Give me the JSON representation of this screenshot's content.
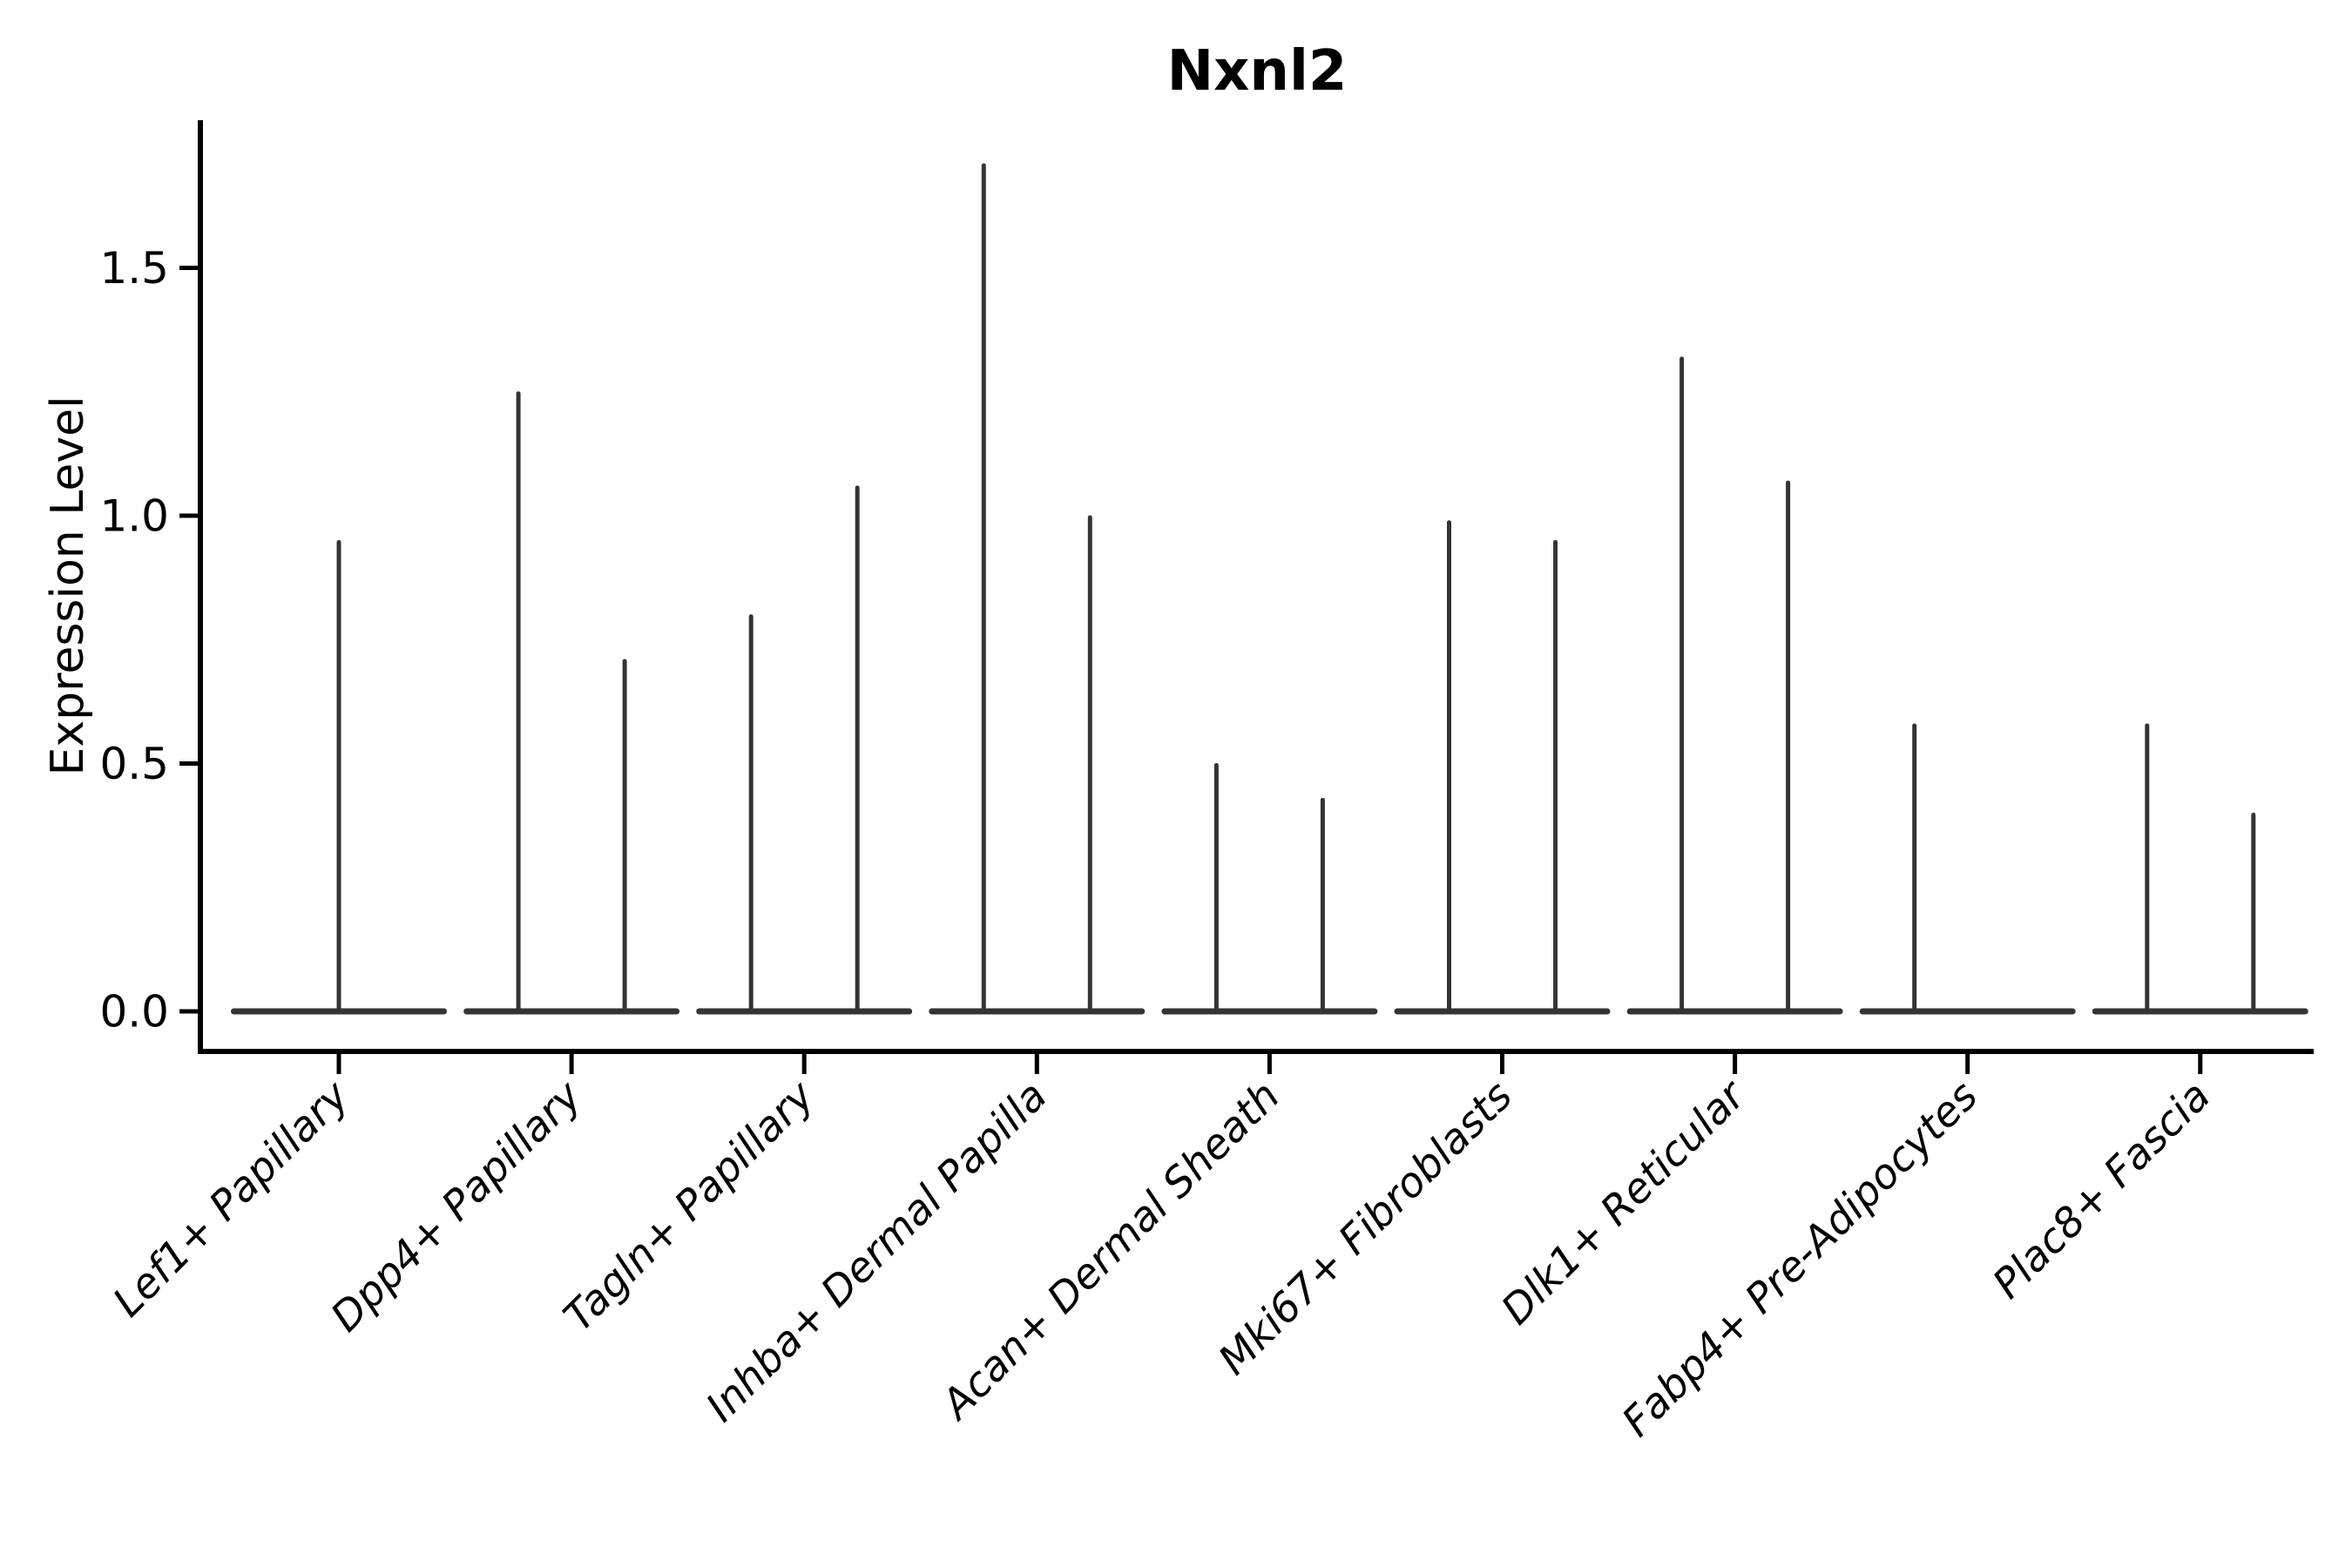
{
  "chart_data": {
    "type": "violin",
    "title": "Nxnl2",
    "ylabel": "Expression Level",
    "xlabel": "",
    "ylim": [
      -0.08,
      1.79
    ],
    "yticks": [
      0.0,
      0.5,
      1.0,
      1.5
    ],
    "ytick_labels": [
      "0.0",
      "0.5",
      "1.0",
      "1.5"
    ],
    "categories": [
      "Lef1+ Papillary",
      "Dpp4+ Papillary",
      "Tagln+ Papillary",
      "Inhba+ Dermal Papilla",
      "Acan+ Dermal Sheath",
      "Mki67+ Fibroblasts",
      "Dlk1+ Reticular",
      "Fabp4+ Pre-Adipocytes",
      "Plac8+ Fascia"
    ],
    "violins": [
      {
        "category": "Lef1+ Papillary",
        "baseline_value": 0.0,
        "spikes": [
          {
            "position": "center",
            "max": 0.95
          }
        ]
      },
      {
        "category": "Dpp4+ Papillary",
        "baseline_value": 0.0,
        "spikes": [
          {
            "position": "left",
            "max": 1.25
          },
          {
            "position": "right",
            "max": 0.71
          }
        ]
      },
      {
        "category": "Tagln+ Papillary",
        "baseline_value": 0.0,
        "spikes": [
          {
            "position": "left",
            "max": 0.8
          },
          {
            "position": "right",
            "max": 1.06
          }
        ]
      },
      {
        "category": "Inhba+ Dermal Papilla",
        "baseline_value": 0.0,
        "spikes": [
          {
            "position": "left",
            "max": 1.71
          },
          {
            "position": "right",
            "max": 1.0
          }
        ]
      },
      {
        "category": "Acan+ Dermal Sheath",
        "baseline_value": 0.0,
        "spikes": [
          {
            "position": "left",
            "max": 0.5
          },
          {
            "position": "right",
            "max": 0.43
          }
        ]
      },
      {
        "category": "Mki67+ Fibroblasts",
        "baseline_value": 0.0,
        "spikes": [
          {
            "position": "left",
            "max": 0.99
          },
          {
            "position": "right",
            "max": 0.95
          }
        ]
      },
      {
        "category": "Dlk1+ Reticular",
        "baseline_value": 0.0,
        "spikes": [
          {
            "position": "left",
            "max": 1.32
          },
          {
            "position": "right",
            "max": 1.07
          }
        ]
      },
      {
        "category": "Fabp4+ Pre-Adipocytes",
        "baseline_value": 0.0,
        "spikes": [
          {
            "position": "left",
            "max": 0.58
          }
        ]
      },
      {
        "category": "Plac8+ Fascia",
        "baseline_value": 0.0,
        "spikes": [
          {
            "position": "left",
            "max": 0.58
          },
          {
            "position": "right",
            "max": 0.4
          }
        ]
      }
    ],
    "colors": {
      "violin": "#343434",
      "axis": "#000000",
      "text": "#000000",
      "background": "#ffffff"
    },
    "grid": false,
    "legend": null
  }
}
